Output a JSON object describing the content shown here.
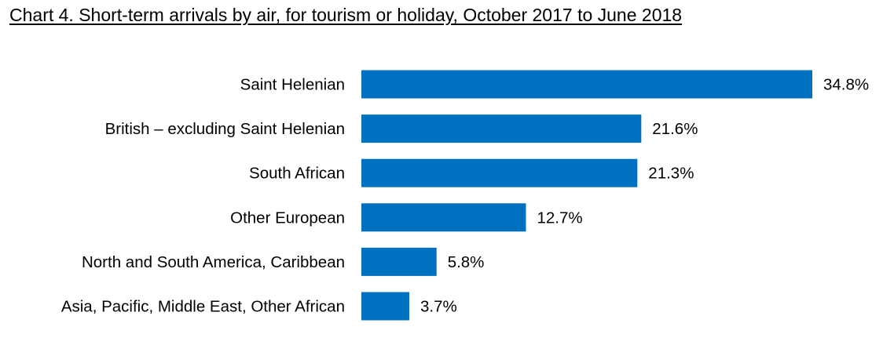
{
  "chart_data": {
    "type": "bar",
    "orientation": "horizontal",
    "title": "Chart 4. Short-term arrivals by air, for tourism or holiday, October 2017 to June 2018",
    "categories": [
      "Saint Helenian",
      "British – excluding Saint Helenian",
      "South African",
      "Other European",
      "North and South America, Caribbean",
      "Asia, Pacific, Middle East, Other African"
    ],
    "values": [
      34.8,
      21.6,
      21.3,
      12.7,
      5.8,
      3.7
    ],
    "value_labels": [
      "34.8%",
      "21.6%",
      "21.3%",
      "12.7%",
      "5.8%",
      "3.7%"
    ],
    "unit": "%",
    "bar_color": "#0070C0",
    "xlim": [
      0,
      34.8
    ],
    "grid": false,
    "legend": "none"
  }
}
